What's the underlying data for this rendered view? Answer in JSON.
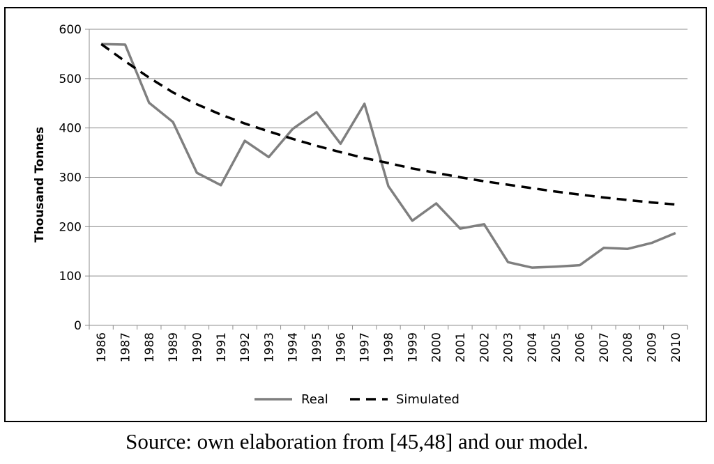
{
  "chart_data": {
    "type": "line",
    "title": "",
    "xlabel": "",
    "ylabel": "Thousand Tonnes",
    "ylim": [
      0,
      600
    ],
    "yticks": [
      0,
      100,
      200,
      300,
      400,
      500,
      600
    ],
    "grid": "horizontal",
    "legend_position": "bottom",
    "categories": [
      "1986",
      "1987",
      "1988",
      "1989",
      "1990",
      "1991",
      "1992",
      "1993",
      "1994",
      "1995",
      "1996",
      "1997",
      "1998",
      "1999",
      "2000",
      "2001",
      "2002",
      "2003",
      "2004",
      "2005",
      "2006",
      "2007",
      "2008",
      "2009",
      "2010"
    ],
    "series": [
      {
        "name": "Real",
        "color": "#7f7f7f",
        "style": "solid",
        "values": [
          570,
          569,
          451,
          412,
          309,
          284,
          374,
          341,
          398,
          432,
          368,
          449,
          282,
          212,
          247,
          196,
          205,
          128,
          117,
          119,
          122,
          157,
          155,
          167,
          187
        ]
      },
      {
        "name": "Simulated",
        "color": "#000000",
        "style": "dashed",
        "values": [
          570,
          535,
          502,
          472,
          448,
          427,
          409,
          393,
          378,
          364,
          351,
          339,
          329,
          318,
          309,
          300,
          292,
          285,
          278,
          271,
          265,
          259,
          254,
          249,
          245
        ]
      }
    ]
  },
  "caption": "Source: own elaboration from [45,48] and our model."
}
